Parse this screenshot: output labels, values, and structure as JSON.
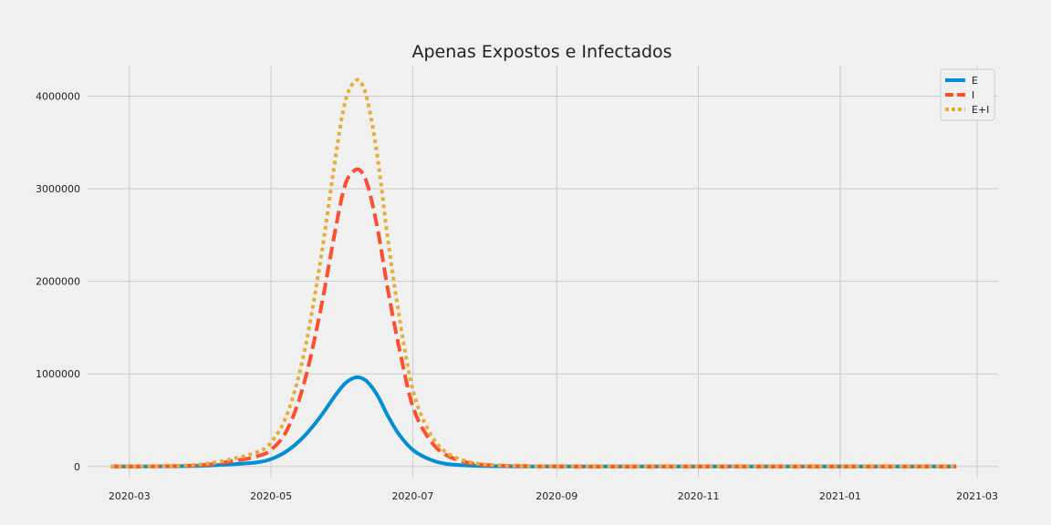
{
  "chart_data": {
    "type": "line",
    "title": "Apenas Expostos e Infectados",
    "xlabel": "",
    "ylabel": "",
    "x_ticks": [
      "2020-03",
      "2020-05",
      "2020-07",
      "2020-09",
      "2020-11",
      "2021-01",
      "2021-03"
    ],
    "y_ticks": [
      "0",
      "1000000",
      "2000000",
      "3000000",
      "4000000"
    ],
    "ylim": [
      -120000,
      4330000
    ],
    "xlim": [
      "2020-02-12",
      "2021-03-10"
    ],
    "grid": true,
    "legend_position": "top-right",
    "x": [
      "2020-02-22",
      "2020-03-15",
      "2020-04-01",
      "2020-04-15",
      "2020-04-25",
      "2020-05-01",
      "2020-05-08",
      "2020-05-15",
      "2020-05-22",
      "2020-05-29",
      "2020-06-02",
      "2020-06-06",
      "2020-06-09",
      "2020-06-12",
      "2020-06-16",
      "2020-06-20",
      "2020-06-25",
      "2020-07-01",
      "2020-07-08",
      "2020-07-15",
      "2020-07-25",
      "2020-08-05",
      "2020-08-20",
      "2020-09-10",
      "2020-10-15",
      "2020-12-01",
      "2021-02-20"
    ],
    "series": [
      {
        "name": "E",
        "color": "#008fd5",
        "dash": "solid",
        "values": [
          0,
          2000,
          8000,
          25000,
          45000,
          80000,
          170000,
          320000,
          530000,
          780000,
          900000,
          960000,
          955000,
          900000,
          760000,
          560000,
          350000,
          180000,
          80000,
          30000,
          10000,
          3000,
          1000,
          0,
          0,
          0,
          0
        ]
      },
      {
        "name": "I",
        "color": "#fc4f30",
        "dash": "dashed",
        "values": [
          0,
          3000,
          15000,
          60000,
          110000,
          180000,
          400000,
          880000,
          1650000,
          2600000,
          3050000,
          3200000,
          3180000,
          3000000,
          2550000,
          1950000,
          1300000,
          650000,
          300000,
          130000,
          40000,
          12000,
          4000,
          0,
          0,
          0,
          0
        ]
      },
      {
        "name": "E+I",
        "color": "#e5ae38",
        "dash": "dotted",
        "values": [
          0,
          5000,
          23000,
          85000,
          155000,
          260000,
          570000,
          1200000,
          2180000,
          3380000,
          3950000,
          4160000,
          4135000,
          3900000,
          3310000,
          2510000,
          1650000,
          830000,
          380000,
          160000,
          50000,
          15000,
          5000,
          0,
          0,
          0,
          0
        ]
      }
    ]
  }
}
